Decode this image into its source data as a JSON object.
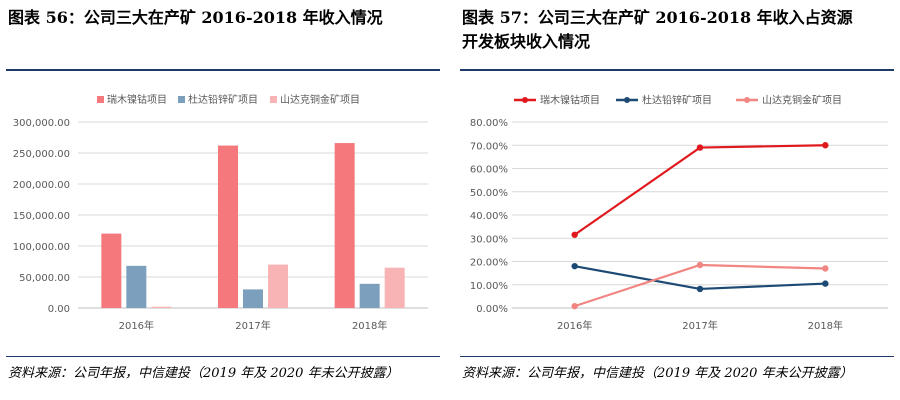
{
  "left": {
    "title": "图表 56：公司三大在产矿 2016-2018 年收入情况",
    "source": "资料来源：公司年报，中信建投（2019 年及 2020 年未公开披露）"
  },
  "right": {
    "title": "图表 57：公司三大在产矿 2016-2018 年收入占资源\n开发板块收入情况",
    "source": "资料来源：公司年报，中信建投（2019 年及 2020 年未公开披露）"
  },
  "chart_data": [
    {
      "type": "bar",
      "categories": [
        "2016年",
        "2017年",
        "2018年"
      ],
      "series": [
        {
          "name": "瑞木镍钴项目",
          "color": "#f4787c",
          "values": [
            120000,
            262000,
            266000
          ]
        },
        {
          "name": "杜达铅锌矿项目",
          "color": "#7b9fbc",
          "values": [
            68000,
            30000,
            39000
          ]
        },
        {
          "name": "山达克铜金矿项目",
          "color": "#f8b3b5",
          "values": [
            2000,
            70000,
            65000
          ]
        }
      ],
      "ylim": [
        0,
        300000
      ],
      "yticks": [
        "0.00",
        "50,000.00",
        "100,000.00",
        "150,000.00",
        "200,000.00",
        "250,000.00",
        "300,000.00"
      ],
      "legend": "top-center",
      "grid": true
    },
    {
      "type": "line",
      "categories": [
        "2016年",
        "2017年",
        "2018年"
      ],
      "series": [
        {
          "name": "瑞木镍钴项目",
          "color": "#e0191e",
          "values": [
            31.5,
            69.0,
            70.0
          ]
        },
        {
          "name": "杜达铅锌矿项目",
          "color": "#1c4a74",
          "values": [
            18.0,
            8.2,
            10.5
          ]
        },
        {
          "name": "山达克铜金矿项目",
          "color": "#f08582",
          "values": [
            0.8,
            18.5,
            17.0
          ]
        }
      ],
      "ylim": [
        0,
        80
      ],
      "yticks": [
        "0.00%",
        "10.00%",
        "20.00%",
        "30.00%",
        "40.00%",
        "50.00%",
        "60.00%",
        "70.00%",
        "80.00%"
      ],
      "legend": "top-center",
      "grid": true
    }
  ]
}
